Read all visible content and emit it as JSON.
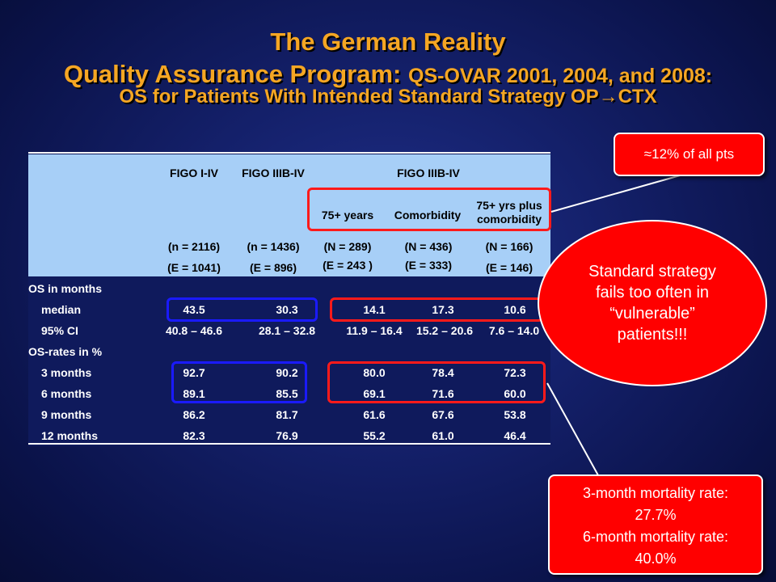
{
  "title": {
    "line1": "The German Reality",
    "line2_main": "Quality Assurance Program:",
    "line2_sub": "QS-OVAR 2001, 2004, and 2008:",
    "line3_pre": "OS for Patients With Intended Standard Strategy OP",
    "line3_arrow": "→",
    "line3_post": "CTX"
  },
  "table": {
    "group_headers": [
      "FIGO I-IV",
      "FIGO IIIB-IV",
      "FIGO IIIB-IV"
    ],
    "sub_headers": [
      "75+ years",
      "Comorbidity",
      "75+ yrs plus comorbidity"
    ],
    "n_values": [
      "(n = 2116)",
      "(n = 1436)",
      "(N = 289)",
      "(N = 436)",
      "(N = 166)"
    ],
    "e_values": [
      "(E = 1041)",
      "(E = 896)",
      "(E = 243 )",
      "(E = 333)",
      "(E = 146)"
    ],
    "section_os": "OS in months",
    "section_rates": "OS-rates in %",
    "rows": [
      {
        "label": "median",
        "values": [
          "43.5",
          "30.3",
          "14.1",
          "17.3",
          "10.6"
        ]
      },
      {
        "label": "95% CI",
        "values": [
          "40.8 – 46.6",
          "28.1 – 32.8",
          "11.9 – 16.4",
          "15.2 – 20.6",
          "7.6 – 14.0"
        ]
      },
      {
        "label": "3 months",
        "values": [
          "92.7",
          "90.2",
          "80.0",
          "78.4",
          "72.3"
        ]
      },
      {
        "label": "6 months",
        "values": [
          "89.1",
          "85.5",
          "69.1",
          "71.6",
          "60.0"
        ]
      },
      {
        "label": "9 months",
        "values": [
          "86.2",
          "81.7",
          "61.6",
          "67.6",
          "53.8"
        ]
      },
      {
        "label": "12 months",
        "values": [
          "82.3",
          "76.9",
          "55.2",
          "61.0",
          "46.4"
        ]
      }
    ]
  },
  "callouts": {
    "pct_all": "≈12% of all pts",
    "ellipse": [
      "Standard strategy",
      "fails too often in",
      "“vulnerable”",
      "patients!!!"
    ],
    "mortality": [
      "3-month mortality rate:",
      "27.7%",
      "6-month mortality rate:",
      "40.0%"
    ]
  },
  "colors": {
    "title": "#f5a623",
    "header_bg": "#a7cff7",
    "highlight_blue": "#1a1aff",
    "highlight_red": "#ff1a1a",
    "callout_red": "#ff0000"
  }
}
